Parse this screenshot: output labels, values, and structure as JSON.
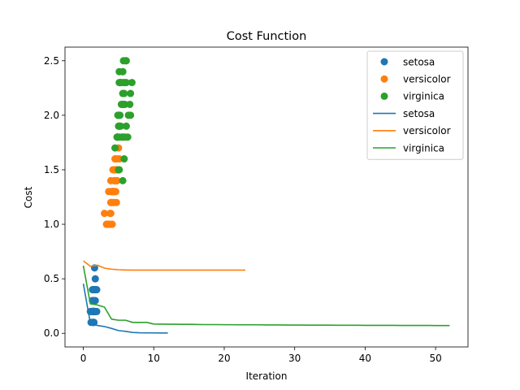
{
  "chart_data": {
    "type": "scatter",
    "title": "Cost Function",
    "xlabel": "Iteration",
    "ylabel": "Cost",
    "xlim": [
      -2.6,
      54.6
    ],
    "ylim": [
      -0.125,
      2.625
    ],
    "xticks": [
      0,
      10,
      20,
      30,
      40,
      50
    ],
    "yticks": [
      0.0,
      0.5,
      1.0,
      1.5,
      2.0,
      2.5
    ],
    "grid": false,
    "legend_position": "top-right",
    "colors": {
      "setosa": "#1f77b4",
      "versicolor": "#ff7f0e",
      "virginica": "#2ca02c"
    },
    "scatter_series": [
      {
        "name": "setosa",
        "points": [
          [
            1.4,
            0.2
          ],
          [
            1.4,
            0.2
          ],
          [
            1.3,
            0.2
          ],
          [
            1.5,
            0.2
          ],
          [
            1.4,
            0.2
          ],
          [
            1.7,
            0.4
          ],
          [
            1.4,
            0.3
          ],
          [
            1.5,
            0.2
          ],
          [
            1.4,
            0.2
          ],
          [
            1.5,
            0.1
          ],
          [
            1.5,
            0.2
          ],
          [
            1.6,
            0.2
          ],
          [
            1.4,
            0.1
          ],
          [
            1.1,
            0.1
          ],
          [
            1.2,
            0.2
          ],
          [
            1.5,
            0.4
          ],
          [
            1.3,
            0.4
          ],
          [
            1.4,
            0.3
          ],
          [
            1.7,
            0.3
          ],
          [
            1.5,
            0.3
          ],
          [
            1.7,
            0.2
          ],
          [
            1.5,
            0.4
          ],
          [
            1.0,
            0.2
          ],
          [
            1.7,
            0.5
          ],
          [
            1.9,
            0.2
          ],
          [
            1.6,
            0.2
          ],
          [
            1.6,
            0.4
          ],
          [
            1.5,
            0.2
          ],
          [
            1.4,
            0.2
          ],
          [
            1.6,
            0.2
          ],
          [
            1.6,
            0.2
          ],
          [
            1.5,
            0.4
          ],
          [
            1.5,
            0.1
          ],
          [
            1.4,
            0.2
          ],
          [
            1.5,
            0.2
          ],
          [
            1.2,
            0.2
          ],
          [
            1.3,
            0.2
          ],
          [
            1.4,
            0.1
          ],
          [
            1.3,
            0.2
          ],
          [
            1.5,
            0.2
          ],
          [
            1.3,
            0.3
          ],
          [
            1.3,
            0.3
          ],
          [
            1.3,
            0.2
          ],
          [
            1.6,
            0.6
          ],
          [
            1.9,
            0.4
          ],
          [
            1.4,
            0.3
          ],
          [
            1.6,
            0.2
          ],
          [
            1.4,
            0.2
          ],
          [
            1.5,
            0.2
          ],
          [
            1.4,
            0.2
          ]
        ]
      },
      {
        "name": "versicolor",
        "points": [
          [
            4.7,
            1.4
          ],
          [
            4.5,
            1.5
          ],
          [
            4.9,
            1.5
          ],
          [
            4.0,
            1.3
          ],
          [
            4.6,
            1.5
          ],
          [
            4.5,
            1.3
          ],
          [
            4.7,
            1.6
          ],
          [
            3.3,
            1.0
          ],
          [
            4.6,
            1.3
          ],
          [
            3.9,
            1.4
          ],
          [
            3.5,
            1.0
          ],
          [
            4.2,
            1.5
          ],
          [
            4.0,
            1.0
          ],
          [
            4.7,
            1.4
          ],
          [
            3.6,
            1.3
          ],
          [
            4.4,
            1.4
          ],
          [
            4.5,
            1.5
          ],
          [
            4.1,
            1.0
          ],
          [
            4.5,
            1.5
          ],
          [
            3.9,
            1.1
          ],
          [
            4.8,
            1.8
          ],
          [
            4.0,
            1.3
          ],
          [
            4.9,
            1.5
          ],
          [
            4.7,
            1.2
          ],
          [
            4.3,
            1.3
          ],
          [
            4.4,
            1.4
          ],
          [
            4.8,
            1.4
          ],
          [
            5.0,
            1.7
          ],
          [
            4.5,
            1.5
          ],
          [
            3.5,
            1.0
          ],
          [
            3.8,
            1.1
          ],
          [
            3.7,
            1.0
          ],
          [
            3.9,
            1.2
          ],
          [
            5.1,
            1.6
          ],
          [
            4.5,
            1.5
          ],
          [
            4.5,
            1.6
          ],
          [
            4.7,
            1.5
          ],
          [
            4.4,
            1.3
          ],
          [
            4.1,
            1.3
          ],
          [
            4.0,
            1.3
          ],
          [
            4.4,
            1.2
          ],
          [
            4.6,
            1.4
          ],
          [
            4.0,
            1.2
          ],
          [
            3.3,
            1.0
          ],
          [
            4.2,
            1.3
          ],
          [
            4.2,
            1.2
          ],
          [
            4.2,
            1.3
          ],
          [
            4.3,
            1.3
          ],
          [
            3.0,
            1.1
          ],
          [
            4.1,
            1.3
          ]
        ]
      },
      {
        "name": "virginica",
        "points": [
          [
            6.0,
            2.5
          ],
          [
            5.1,
            1.9
          ],
          [
            5.9,
            2.1
          ],
          [
            5.6,
            1.8
          ],
          [
            5.8,
            2.2
          ],
          [
            6.6,
            2.1
          ],
          [
            4.5,
            1.7
          ],
          [
            6.3,
            1.8
          ],
          [
            5.8,
            1.8
          ],
          [
            6.1,
            2.5
          ],
          [
            5.1,
            2.0
          ],
          [
            5.3,
            1.9
          ],
          [
            5.5,
            2.1
          ],
          [
            5.0,
            2.0
          ],
          [
            5.1,
            2.4
          ],
          [
            5.3,
            2.3
          ],
          [
            5.5,
            1.8
          ],
          [
            6.7,
            2.2
          ],
          [
            6.9,
            2.3
          ],
          [
            5.0,
            1.5
          ],
          [
            5.7,
            2.3
          ],
          [
            4.9,
            2.0
          ],
          [
            6.7,
            2.0
          ],
          [
            4.9,
            1.8
          ],
          [
            5.7,
            2.1
          ],
          [
            6.0,
            1.8
          ],
          [
            4.8,
            1.8
          ],
          [
            4.9,
            1.8
          ],
          [
            5.6,
            2.1
          ],
          [
            5.8,
            1.6
          ],
          [
            6.1,
            1.9
          ],
          [
            6.4,
            2.0
          ],
          [
            5.6,
            2.2
          ],
          [
            5.1,
            1.5
          ],
          [
            5.6,
            1.4
          ],
          [
            6.1,
            2.3
          ],
          [
            5.6,
            2.4
          ],
          [
            5.5,
            1.8
          ],
          [
            4.8,
            1.8
          ],
          [
            5.4,
            2.1
          ],
          [
            5.6,
            2.4
          ],
          [
            5.1,
            2.3
          ],
          [
            5.1,
            1.9
          ],
          [
            5.9,
            2.3
          ],
          [
            5.7,
            2.5
          ],
          [
            5.2,
            2.3
          ],
          [
            5.0,
            1.9
          ],
          [
            5.2,
            2.0
          ],
          [
            5.4,
            2.3
          ],
          [
            5.1,
            1.8
          ]
        ]
      }
    ],
    "line_series": [
      {
        "name": "setosa",
        "x": [
          0,
          1,
          2,
          3,
          4,
          5,
          6,
          7,
          8,
          9,
          10,
          11,
          12
        ],
        "y": [
          0.455,
          0.092,
          0.072,
          0.062,
          0.045,
          0.025,
          0.018,
          0.008,
          0.005,
          0.004,
          0.004,
          0.003,
          0.003
        ]
      },
      {
        "name": "versicolor",
        "x": [
          0,
          1,
          2,
          3,
          4,
          5,
          6,
          7,
          8,
          9,
          10,
          11,
          12,
          13,
          14,
          15,
          16,
          17,
          18,
          19,
          20,
          21,
          22,
          23
        ],
        "y": [
          0.665,
          0.615,
          0.625,
          0.598,
          0.588,
          0.583,
          0.581,
          0.58,
          0.58,
          0.58,
          0.58,
          0.58,
          0.58,
          0.58,
          0.58,
          0.58,
          0.58,
          0.58,
          0.58,
          0.58,
          0.58,
          0.58,
          0.58,
          0.58
        ]
      },
      {
        "name": "virginica",
        "x": [
          0,
          1,
          2,
          3,
          4,
          5,
          6,
          7,
          8,
          9,
          10,
          11,
          12,
          13,
          14,
          15,
          16,
          17,
          18,
          19,
          20,
          21,
          22,
          23,
          24,
          25,
          26,
          27,
          28,
          29,
          30,
          31,
          32,
          33,
          34,
          35,
          36,
          37,
          38,
          39,
          40,
          41,
          42,
          43,
          44,
          45,
          46,
          47,
          48,
          49,
          50,
          51,
          52
        ],
        "y": [
          0.62,
          0.27,
          0.26,
          0.24,
          0.13,
          0.12,
          0.12,
          0.1,
          0.1,
          0.1,
          0.085,
          0.084,
          0.083,
          0.083,
          0.082,
          0.082,
          0.081,
          0.08,
          0.08,
          0.08,
          0.079,
          0.079,
          0.078,
          0.078,
          0.078,
          0.078,
          0.077,
          0.077,
          0.077,
          0.076,
          0.076,
          0.076,
          0.075,
          0.075,
          0.075,
          0.075,
          0.074,
          0.074,
          0.074,
          0.074,
          0.073,
          0.073,
          0.073,
          0.073,
          0.073,
          0.072,
          0.072,
          0.072,
          0.072,
          0.072,
          0.071,
          0.071,
          0.071
        ]
      }
    ],
    "legend": [
      {
        "label": "setosa",
        "kind": "marker",
        "color": "#1f77b4"
      },
      {
        "label": "versicolor",
        "kind": "marker",
        "color": "#ff7f0e"
      },
      {
        "label": "virginica",
        "kind": "marker",
        "color": "#2ca02c"
      },
      {
        "label": "setosa",
        "kind": "line",
        "color": "#1f77b4"
      },
      {
        "label": "versicolor",
        "kind": "line",
        "color": "#ff7f0e"
      },
      {
        "label": "virginica",
        "kind": "line",
        "color": "#2ca02c"
      }
    ]
  }
}
